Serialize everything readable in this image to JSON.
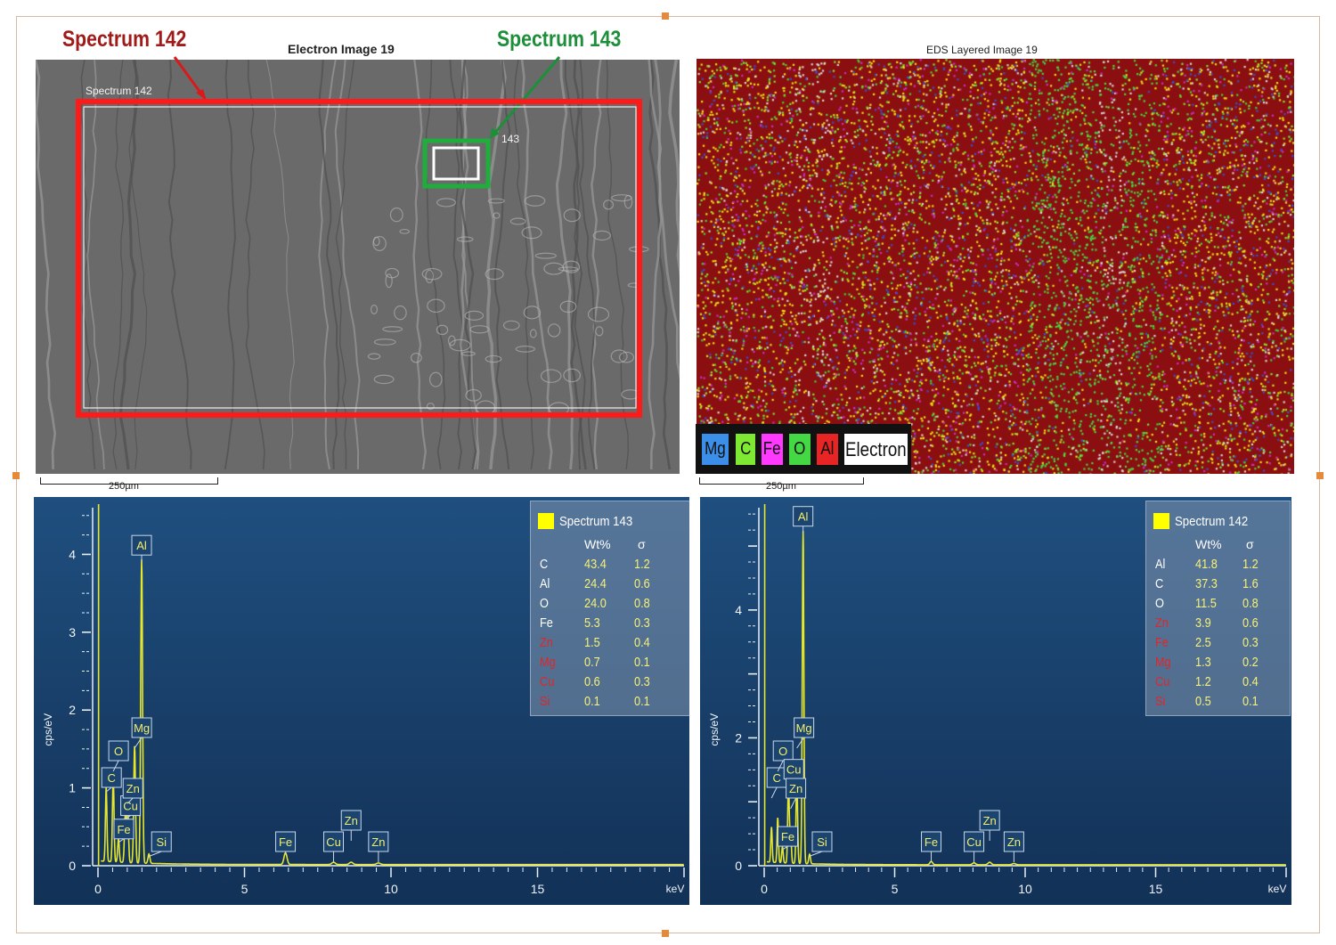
{
  "callouts": {
    "spectrum_142": "Spectrum 142",
    "spectrum_143": "Spectrum 143",
    "color_142": "#a11a1a",
    "color_143": "#1d8f3a"
  },
  "electron_image": {
    "title": "Electron Image 19",
    "region_label_142": "Spectrum 142",
    "region_label_143": "143",
    "scale_label": "250µm",
    "region_142_color": "#ff1a1a",
    "region_143_color": "#1fae3c"
  },
  "eds_image": {
    "title": "EDS Layered Image 19",
    "scale_label": "250µm",
    "legend": [
      {
        "label": "Mg",
        "color": "#3b8fe8"
      },
      {
        "label": "C",
        "color": "#7ee832"
      },
      {
        "label": "Fe",
        "color": "#ff39ff"
      },
      {
        "label": "O",
        "color": "#45d845"
      },
      {
        "label": "Al",
        "color": "#e82424"
      },
      {
        "label": "Electron",
        "color": "#ffffff"
      }
    ]
  },
  "chart_data": [
    {
      "type": "line",
      "name": "Spectrum 143",
      "xlabel": "keV",
      "ylabel": "cps/eV",
      "xlim": [
        0,
        20
      ],
      "ylim": [
        0,
        4.6
      ],
      "xticks": [
        0,
        5,
        10,
        15
      ],
      "yticks": [
        0,
        1,
        2,
        3,
        4
      ],
      "peaks": [
        {
          "x": 0.28,
          "y": 0.95,
          "label": "C"
        },
        {
          "x": 0.52,
          "y": 1.1,
          "label": "O"
        },
        {
          "x": 0.7,
          "y": 0.3,
          "label": "Fe"
        },
        {
          "x": 0.93,
          "y": 0.6,
          "label": "Cu"
        },
        {
          "x": 1.01,
          "y": 0.8,
          "label": "Zn"
        },
        {
          "x": 1.25,
          "y": 1.5,
          "label": "Mg"
        },
        {
          "x": 1.49,
          "y": 3.9,
          "label": "Al"
        },
        {
          "x": 1.74,
          "y": 0.12,
          "label": "Si"
        },
        {
          "x": 6.4,
          "y": 0.15,
          "label": "Fe"
        },
        {
          "x": 8.04,
          "y": 0.03,
          "label": "Cu"
        },
        {
          "x": 8.64,
          "y": 0.03,
          "label": "Zn"
        },
        {
          "x": 9.57,
          "y": 0.02,
          "label": "Zn"
        }
      ],
      "table": {
        "title": "Spectrum 143",
        "headers": [
          "Wt%",
          "σ"
        ],
        "rows": [
          {
            "el": "C",
            "wt": "43.4",
            "sigma": "1.2",
            "status": "quant"
          },
          {
            "el": "Al",
            "wt": "24.4",
            "sigma": "0.6",
            "status": "quant"
          },
          {
            "el": "O",
            "wt": "24.0",
            "sigma": "0.8",
            "status": "quant"
          },
          {
            "el": "Fe",
            "wt": "5.3",
            "sigma": "0.3",
            "status": "quant"
          },
          {
            "el": "Zn",
            "wt": "1.5",
            "sigma": "0.4",
            "status": "trace"
          },
          {
            "el": "Mg",
            "wt": "0.7",
            "sigma": "0.1",
            "status": "trace"
          },
          {
            "el": "Cu",
            "wt": "0.6",
            "sigma": "0.3",
            "status": "trace"
          },
          {
            "el": "Si",
            "wt": "0.1",
            "sigma": "0.1",
            "status": "trace"
          }
        ]
      }
    },
    {
      "type": "line",
      "name": "Spectrum 142",
      "xlabel": "keV",
      "ylabel": "cps/eV",
      "xlim": [
        0,
        20
      ],
      "ylim": [
        0,
        5.6
      ],
      "xticks": [
        0,
        5,
        10,
        15
      ],
      "yticks": [
        0,
        2,
        4
      ],
      "peaks": [
        {
          "x": 0.28,
          "y": 0.55,
          "label": "C"
        },
        {
          "x": 0.52,
          "y": 0.7,
          "label": "O"
        },
        {
          "x": 0.7,
          "y": 0.25,
          "label": "Fe"
        },
        {
          "x": 0.93,
          "y": 1.3,
          "label": "Cu"
        },
        {
          "x": 1.01,
          "y": 0.5,
          "label": "Zn"
        },
        {
          "x": 1.25,
          "y": 1.3,
          "label": "Mg"
        },
        {
          "x": 1.49,
          "y": 5.2,
          "label": "Al"
        },
        {
          "x": 1.74,
          "y": 0.15,
          "label": "Si"
        },
        {
          "x": 6.4,
          "y": 0.05,
          "label": "Fe"
        },
        {
          "x": 8.04,
          "y": 0.03,
          "label": "Cu"
        },
        {
          "x": 8.64,
          "y": 0.04,
          "label": "Zn"
        },
        {
          "x": 9.57,
          "y": 0.02,
          "label": "Zn"
        }
      ],
      "table": {
        "title": "Spectrum 142",
        "headers": [
          "Wt%",
          "σ"
        ],
        "rows": [
          {
            "el": "Al",
            "wt": "41.8",
            "sigma": "1.2",
            "status": "quant"
          },
          {
            "el": "C",
            "wt": "37.3",
            "sigma": "1.6",
            "status": "quant"
          },
          {
            "el": "O",
            "wt": "11.5",
            "sigma": "0.8",
            "status": "quant"
          },
          {
            "el": "Zn",
            "wt": "3.9",
            "sigma": "0.6",
            "status": "trace"
          },
          {
            "el": "Fe",
            "wt": "2.5",
            "sigma": "0.3",
            "status": "trace"
          },
          {
            "el": "Mg",
            "wt": "1.3",
            "sigma": "0.2",
            "status": "trace"
          },
          {
            "el": "Cu",
            "wt": "1.2",
            "sigma": "0.4",
            "status": "trace"
          },
          {
            "el": "Si",
            "wt": "0.5",
            "sigma": "0.1",
            "status": "trace"
          }
        ]
      }
    }
  ],
  "colors": {
    "trace": "#e0262a",
    "quant_label": "#ffffff",
    "value": "#f5f07a",
    "spectrum_line": "#e6e62a",
    "peak_label_fill": "#1c4470",
    "peak_label_stroke": "#c9d8ea",
    "peak_label_text": "#f2ee6a"
  }
}
